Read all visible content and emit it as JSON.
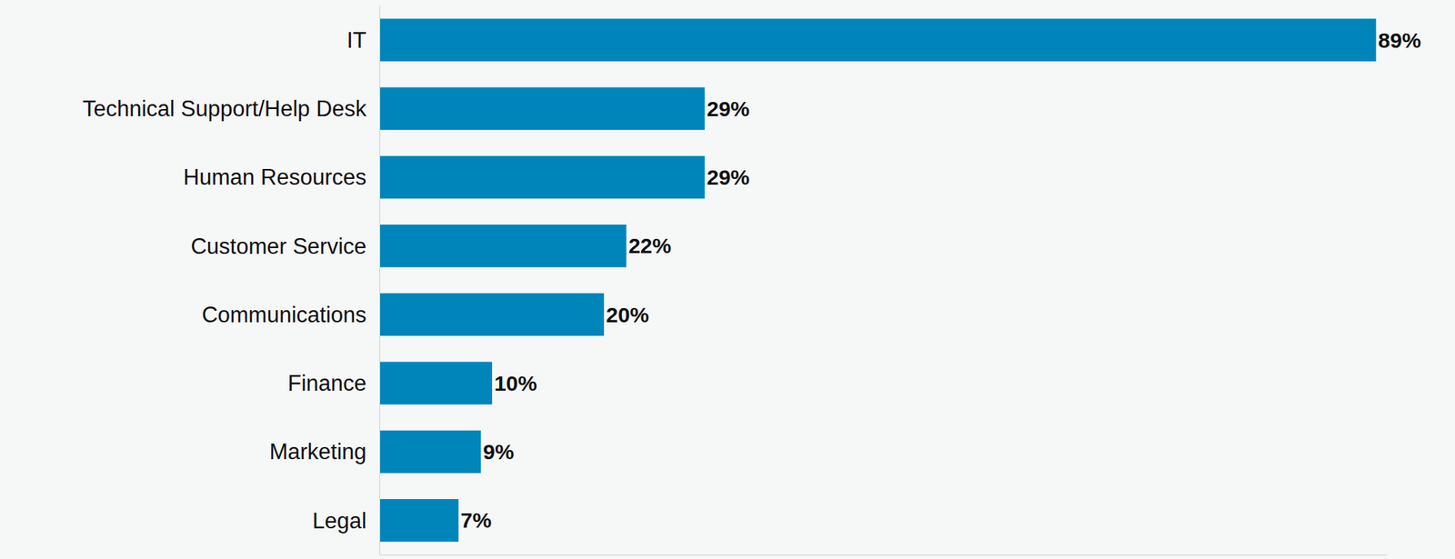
{
  "chart_data": {
    "type": "bar",
    "orientation": "horizontal",
    "categories": [
      "IT",
      "Technical Support/Help Desk",
      "Human Resources",
      "Customer Service",
      "Communications",
      "Finance",
      "Marketing",
      "Legal"
    ],
    "values": [
      89,
      29,
      29,
      22,
      20,
      10,
      9,
      7
    ],
    "value_labels": [
      "89%",
      "29%",
      "29%",
      "22%",
      "20%",
      "10%",
      "9%",
      "7%"
    ],
    "color": "#0085ba",
    "xlim": [
      0,
      90
    ],
    "grid": false,
    "data_labels": true,
    "tick_labels": "y"
  }
}
